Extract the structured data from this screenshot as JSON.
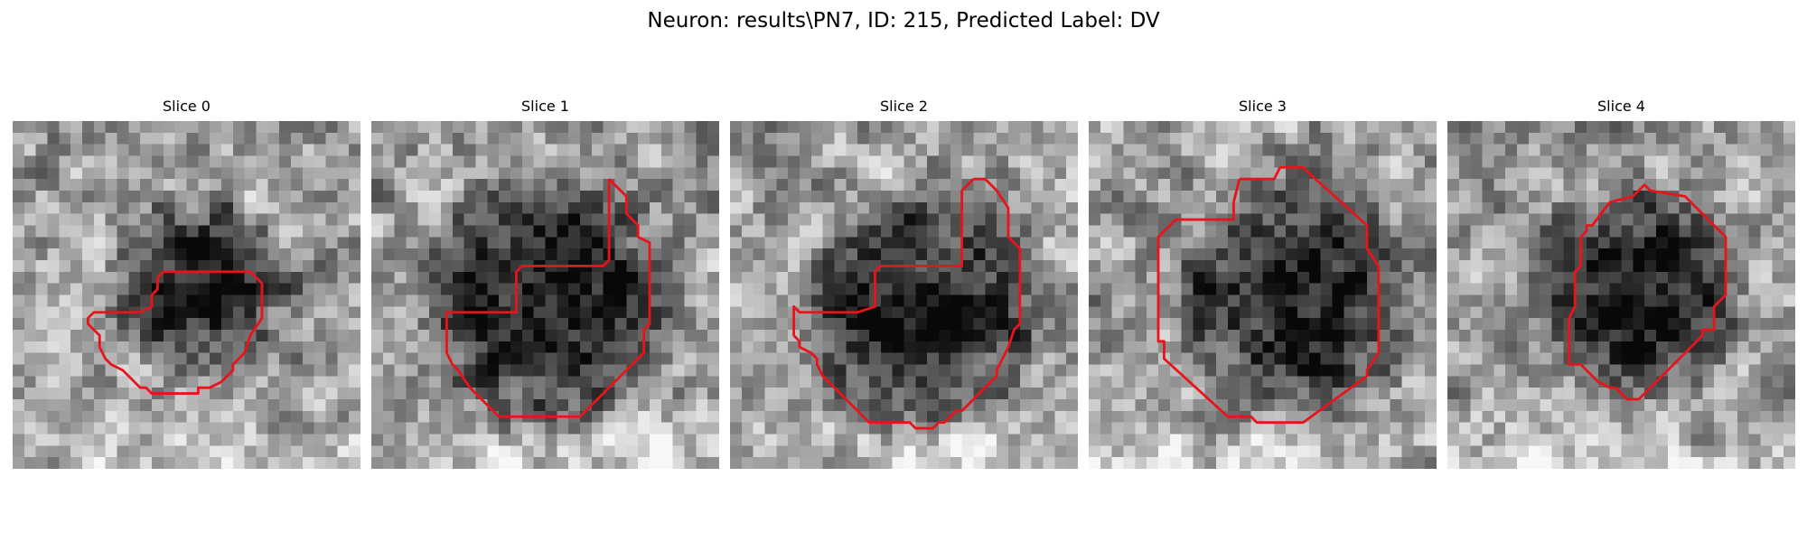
{
  "figure": {
    "title": "Neuron: results\\PN7, ID: 215, Predicted Label: DV"
  },
  "panels": [
    {
      "title": "Slice 0",
      "seed": 11,
      "blob": [
        0.55,
        0.48,
        0.3
      ],
      "contour_color": "#e8141c"
    },
    {
      "title": "Slice 1",
      "seed": 23,
      "blob": [
        0.5,
        0.52,
        0.42
      ],
      "contour_color": "#e8141c"
    },
    {
      "title": "Slice 2",
      "seed": 37,
      "blob": [
        0.55,
        0.55,
        0.4
      ],
      "contour_color": "#e8141c"
    },
    {
      "title": "Slice 3",
      "seed": 41,
      "blob": [
        0.6,
        0.52,
        0.4
      ],
      "contour_color": "#e8141c"
    },
    {
      "title": "Slice 4",
      "seed": 53,
      "blob": [
        0.55,
        0.48,
        0.35
      ],
      "contour_color": "#e8141c"
    }
  ]
}
